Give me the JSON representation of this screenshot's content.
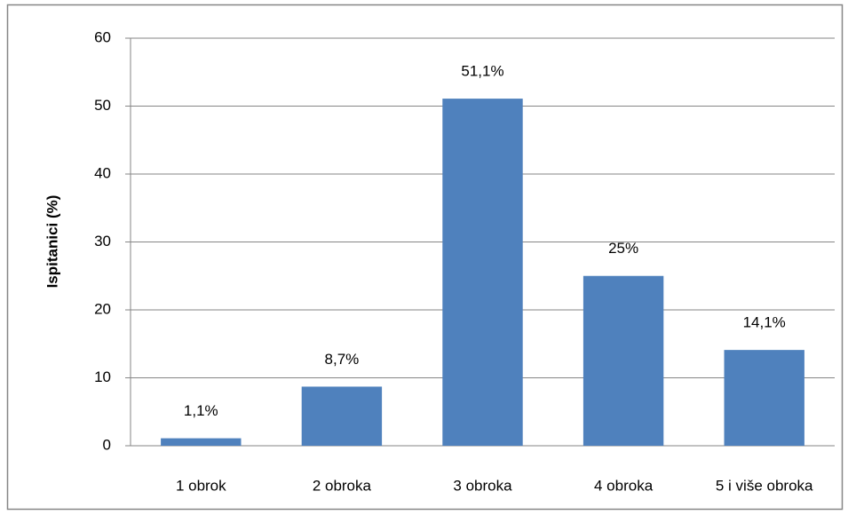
{
  "chart_data": {
    "type": "bar",
    "y_label": "Ispitanici (%)",
    "categories": [
      "1 obrok",
      "2 obroka",
      "3 obroka",
      "4 obroka",
      "5 i više obroka"
    ],
    "values": [
      1.1,
      8.7,
      51.1,
      25,
      14.1
    ],
    "value_labels": [
      "1,1%",
      "8,7%",
      "51,1%",
      "25%",
      "14,1%"
    ],
    "color": "#4f81bd",
    "ylim": [
      0,
      60
    ],
    "yticks": [
      0,
      10,
      20,
      30,
      40,
      50,
      60
    ],
    "grid": true
  }
}
